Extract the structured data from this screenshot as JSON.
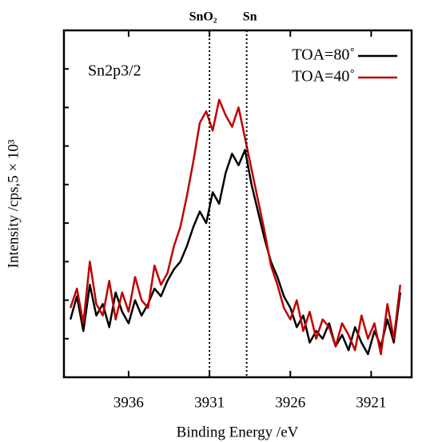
{
  "chart_data": {
    "type": "line",
    "y_label": "Intensity /cps,5 × 10³",
    "x_label": "Binding  Energy /eV",
    "annotation": "Sn2p3/2",
    "reference_lines": [
      {
        "label": "SnO₂",
        "x": 3931.0
      },
      {
        "label": "Sn",
        "x": 3928.7
      }
    ],
    "x": [
      3939.6,
      3939.2,
      3938.8,
      3938.4,
      3938.0,
      3937.6,
      3937.2,
      3936.8,
      3936.4,
      3936.0,
      3935.6,
      3935.2,
      3934.8,
      3934.4,
      3934.0,
      3933.6,
      3933.2,
      3932.8,
      3932.4,
      3932.0,
      3931.6,
      3931.2,
      3930.8,
      3930.4,
      3930.0,
      3929.6,
      3929.2,
      3928.8,
      3928.4,
      3928.0,
      3927.6,
      3927.2,
      3926.8,
      3926.4,
      3926.0,
      3925.6,
      3925.2,
      3924.8,
      3924.4,
      3924.0,
      3923.6,
      3923.2,
      3922.8,
      3922.4,
      3922.0,
      3921.6,
      3921.2,
      3920.8,
      3920.4,
      3920.0,
      3919.6,
      3919.2
    ],
    "series": [
      {
        "name": "TOA=80˚",
        "color": "#000000",
        "values": [
          1.5,
          2.1,
          1.2,
          2.4,
          1.6,
          1.9,
          1.3,
          2.2,
          1.7,
          1.4,
          2.0,
          1.6,
          1.9,
          2.3,
          2.1,
          2.5,
          2.8,
          3.0,
          3.4,
          3.9,
          4.3,
          4.0,
          4.8,
          4.5,
          5.3,
          5.8,
          5.5,
          5.9,
          5.0,
          4.3,
          3.6,
          3.0,
          2.6,
          2.1,
          1.8,
          1.3,
          1.6,
          0.9,
          1.2,
          1.0,
          1.4,
          0.8,
          1.1,
          0.7,
          1.3,
          0.9,
          0.6,
          1.2,
          0.8,
          1.5,
          0.9,
          2.2
        ]
      },
      {
        "name": "TOA=40˚",
        "color": "#c00000",
        "values": [
          1.8,
          2.3,
          1.4,
          3.0,
          1.9,
          1.6,
          2.5,
          1.5,
          2.2,
          1.7,
          2.6,
          2.0,
          1.8,
          2.9,
          2.4,
          2.7,
          3.4,
          3.9,
          4.7,
          5.6,
          6.6,
          6.9,
          6.4,
          7.2,
          6.8,
          6.5,
          7.0,
          6.2,
          5.4,
          4.6,
          3.8,
          2.9,
          2.4,
          1.8,
          1.5,
          2.0,
          1.2,
          1.7,
          1.0,
          1.5,
          1.3,
          0.8,
          1.4,
          1.1,
          0.7,
          1.6,
          1.0,
          1.4,
          0.6,
          1.9,
          1.0,
          2.4
        ]
      }
    ],
    "xlim": [
      3940,
      3918.5
    ],
    "xticks": [
      3936,
      3931,
      3926,
      3921
    ],
    "ylim": [
      0,
      9
    ],
    "yticks": [
      1,
      2,
      3,
      4,
      5,
      6,
      7,
      8
    ]
  }
}
